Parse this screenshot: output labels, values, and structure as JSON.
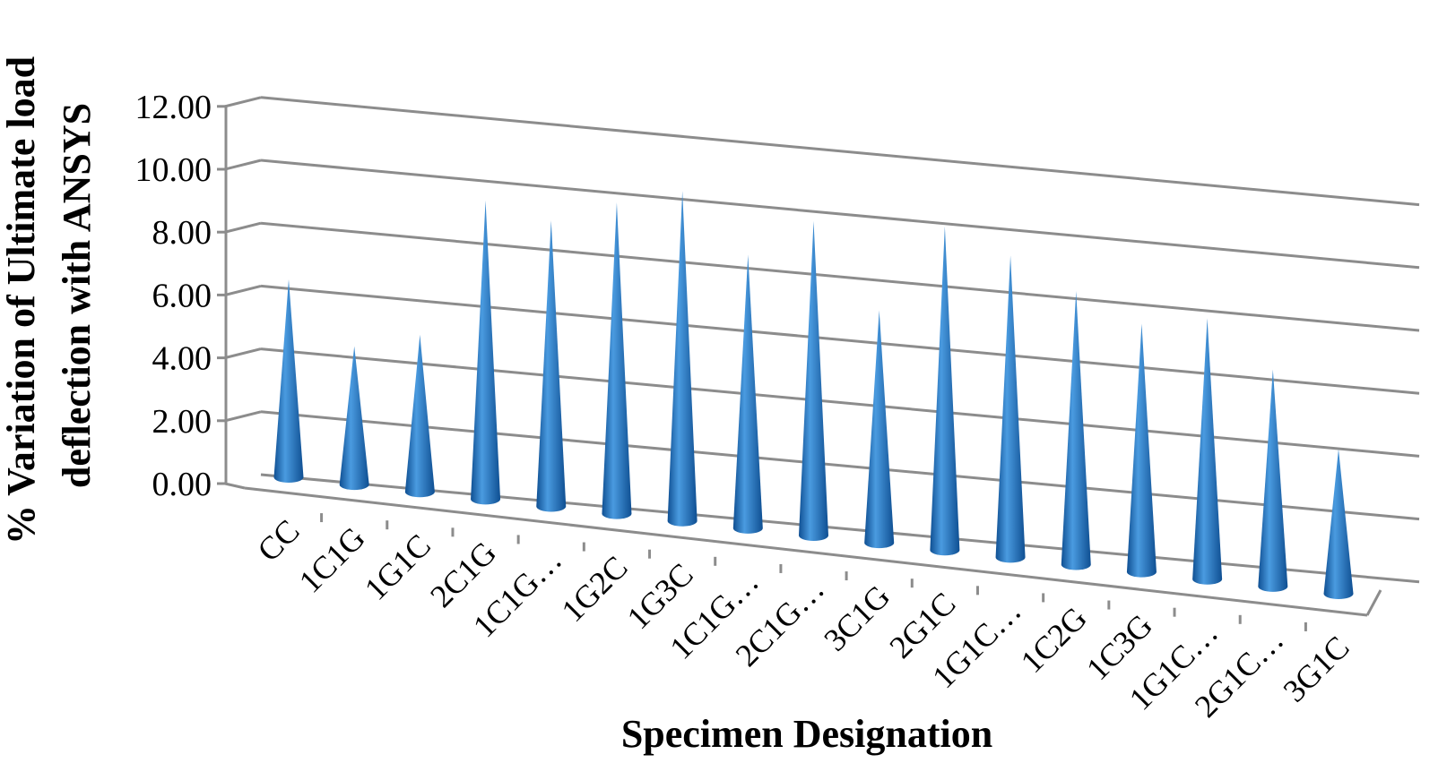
{
  "chart_data": {
    "type": "bar",
    "bar_shape": "cone",
    "view": "3d",
    "title": "",
    "xlabel": "Specimen Designation",
    "ylabel_lines": [
      "% Variation of Ultimate load",
      "deflection with ANSYS"
    ],
    "categories": [
      "CC",
      "1C1G",
      "1G1C",
      "2C1G",
      "1C1G…",
      "1G2C",
      "1G3C",
      "1C1G…",
      "2C1G…",
      "3C1G",
      "2G1C",
      "1G1C…",
      "1C2G",
      "1C3G",
      "1G1C…",
      "2G1C…",
      "3G1C"
    ],
    "values": [
      6.3,
      4.4,
      5.0,
      9.5,
      9.1,
      9.9,
      10.5,
      8.7,
      10.0,
      7.4,
      10.3,
      9.6,
      8.7,
      7.9,
      8.3,
      6.9,
      4.6
    ],
    "ylim": [
      0,
      12
    ],
    "yticks": [
      "0.00",
      "2.00",
      "4.00",
      "6.00",
      "8.00",
      "10.00",
      "12.00"
    ],
    "grid": true,
    "legend": "none",
    "colors": {
      "bar": "#1f6fbf",
      "bar_light": "#4a9be0",
      "bar_dark": "#0f4f92",
      "grid": "#8c8c8c"
    }
  }
}
